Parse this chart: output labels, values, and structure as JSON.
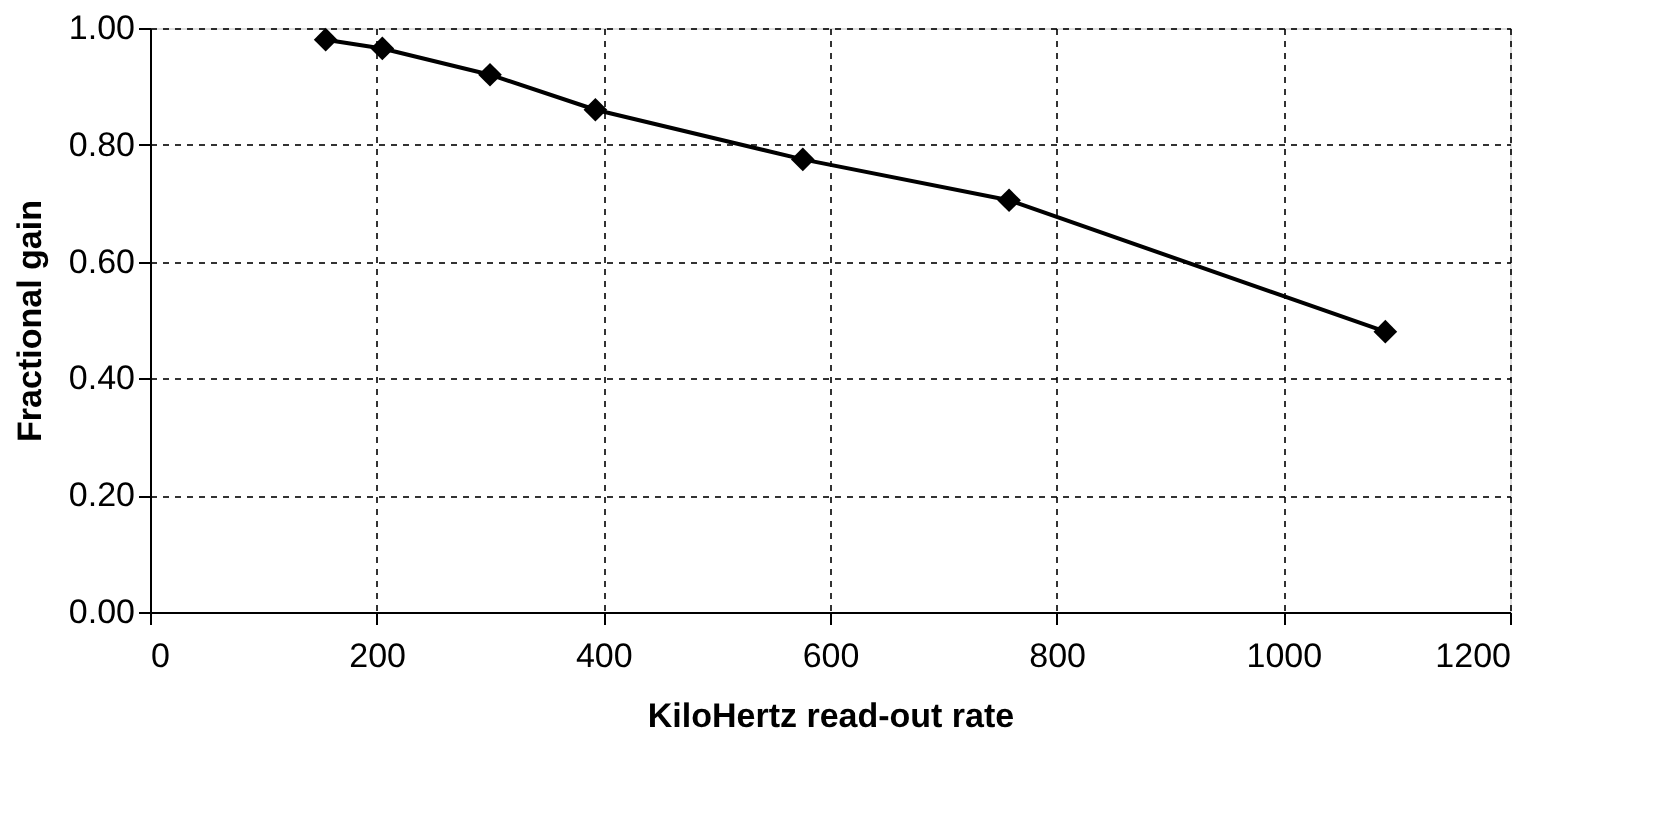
{
  "chart_data": {
    "type": "line",
    "xlabel": "KiloHertz read-out rate",
    "ylabel": "Fractional gain",
    "x": [
      155,
      205,
      300,
      393,
      576,
      758,
      1090
    ],
    "series": [
      {
        "color": "#000000",
        "values": [
          0.98,
          0.965,
          0.92,
          0.86,
          0.775,
          0.705,
          0.48
        ]
      }
    ],
    "xlim": [
      0,
      1200
    ],
    "xticks": [
      0,
      200,
      400,
      600,
      800,
      1000,
      1200
    ],
    "ylim": [
      0,
      1
    ],
    "yticks": [
      {
        "value": 0,
        "label": "0.00"
      },
      {
        "value": 0.2,
        "label": "0.20"
      },
      {
        "value": 0.4,
        "label": "0.40"
      },
      {
        "value": 0.6,
        "label": "0.60"
      },
      {
        "value": 0.8,
        "label": "0.80"
      },
      {
        "value": 1,
        "label": "1.00"
      }
    ],
    "grid": true,
    "marker": "diamond",
    "line_style": "solid"
  }
}
